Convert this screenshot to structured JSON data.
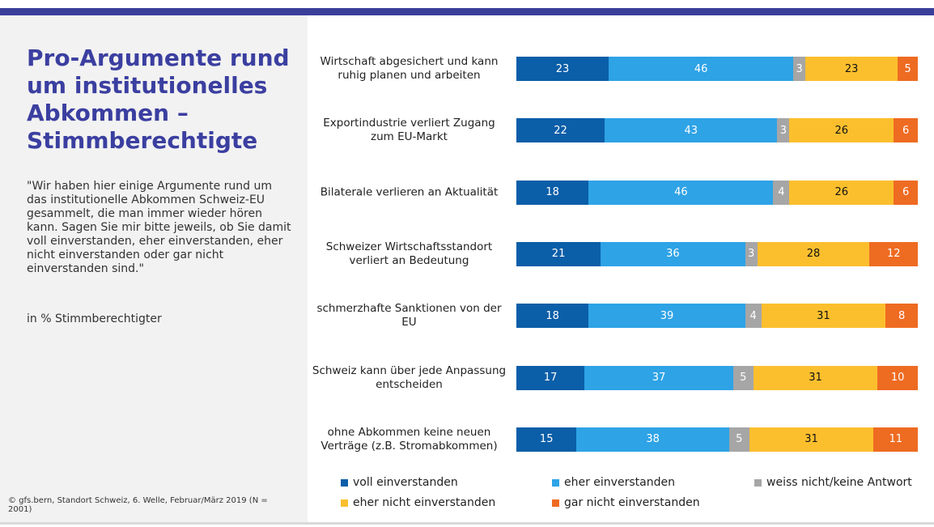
{
  "slide": {
    "title": "Pro-Argumente rund um institutionelles Abkommen – Stimmberechtigte",
    "question": "\"Wir haben hier einige Argumente rund um das institutionelle Abkommen Schweiz-EU gesammelt, die man immer wieder hören kann. Sagen Sie mir bitte jeweils, ob Sie damit voll einverstanden, eher einverstanden, eher nicht einverstanden oder gar nicht einverstanden sind.\"",
    "unit_note": "in % Stimmberechtigter",
    "source": "© gfs.bern, Standort Schweiz, 6. Welle, Februar/März 2019 (N = 2001)"
  },
  "chart_data": {
    "type": "bar",
    "orientation": "horizontal",
    "stacked": true,
    "xlim": [
      0,
      100
    ],
    "categories": [
      "Wirtschaft abgesichert und kann ruhig planen und arbeiten",
      "Exportindustrie verliert Zugang zum EU-Markt",
      "Bilaterale verlieren an Aktualität",
      "Schweizer Wirtschaftsstandort verliert an Bedeutung",
      "schmerzhafte Sanktionen von der EU",
      "Schweiz kann über jede Anpassung entscheiden",
      "ohne Abkommen keine neuen Verträge (z.B. Stromabkommen)"
    ],
    "series": [
      {
        "name": "voll einverstanden",
        "color": "#0b5ea8",
        "values": [
          23,
          22,
          18,
          21,
          18,
          17,
          15
        ]
      },
      {
        "name": "eher einverstanden",
        "color": "#2ea3e6",
        "values": [
          46,
          43,
          46,
          36,
          39,
          37,
          38
        ]
      },
      {
        "name": "weiss nicht/keine Antwort",
        "color": "#a6a6a6",
        "values": [
          3,
          3,
          4,
          3,
          4,
          5,
          5
        ]
      },
      {
        "name": "eher nicht einverstanden",
        "color": "#fbbf2e",
        "values": [
          23,
          26,
          26,
          28,
          31,
          31,
          31
        ]
      },
      {
        "name": "gar nicht einverstanden",
        "color": "#ee6b22",
        "values": [
          5,
          6,
          6,
          12,
          8,
          10,
          11
        ]
      }
    ]
  }
}
